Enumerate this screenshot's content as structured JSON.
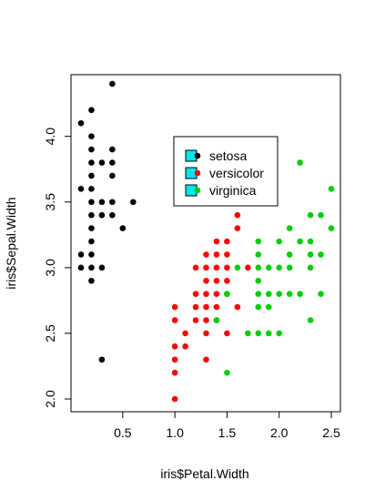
{
  "chart_data": {
    "type": "scatter",
    "title": "",
    "xlabel": "iris$Petal.Width",
    "ylabel": "iris$Sepal.Width",
    "xlim": [
      0.1,
      2.5
    ],
    "ylim": [
      2.0,
      4.4
    ],
    "xticks": [
      "0.5",
      "1.0",
      "1.5",
      "2.0",
      "2.5"
    ],
    "yticks": [
      "2.0",
      "2.5",
      "3.0",
      "3.5",
      "4.0"
    ],
    "grid": false,
    "legend_position": "top-center-right",
    "series": [
      {
        "name": "setosa",
        "color": "#000000",
        "points": [
          [
            0.1,
            4.1
          ],
          [
            0.1,
            3.6
          ],
          [
            0.1,
            3.1
          ],
          [
            0.1,
            3.0
          ],
          [
            0.2,
            4.2
          ],
          [
            0.2,
            4.0
          ],
          [
            0.2,
            3.9
          ],
          [
            0.2,
            3.8
          ],
          [
            0.2,
            3.7
          ],
          [
            0.2,
            3.6
          ],
          [
            0.2,
            3.5
          ],
          [
            0.2,
            3.4
          ],
          [
            0.2,
            3.3
          ],
          [
            0.2,
            3.2
          ],
          [
            0.2,
            3.1
          ],
          [
            0.2,
            3.0
          ],
          [
            0.2,
            2.9
          ],
          [
            0.3,
            3.8
          ],
          [
            0.3,
            3.5
          ],
          [
            0.3,
            3.4
          ],
          [
            0.3,
            3.0
          ],
          [
            0.3,
            2.3
          ],
          [
            0.4,
            4.4
          ],
          [
            0.4,
            3.9
          ],
          [
            0.4,
            3.8
          ],
          [
            0.4,
            3.7
          ],
          [
            0.4,
            3.5
          ],
          [
            0.4,
            3.4
          ],
          [
            0.5,
            3.3
          ],
          [
            0.6,
            3.5
          ]
        ]
      },
      {
        "name": "versicolor",
        "color": "#ff0000",
        "points": [
          [
            1.0,
            2.7
          ],
          [
            1.0,
            2.6
          ],
          [
            1.0,
            2.4
          ],
          [
            1.0,
            2.3
          ],
          [
            1.0,
            2.2
          ],
          [
            1.0,
            2.0
          ],
          [
            1.1,
            2.5
          ],
          [
            1.1,
            2.4
          ],
          [
            1.2,
            3.0
          ],
          [
            1.2,
            2.8
          ],
          [
            1.2,
            2.7
          ],
          [
            1.2,
            2.6
          ],
          [
            1.3,
            3.1
          ],
          [
            1.3,
            3.0
          ],
          [
            1.3,
            2.9
          ],
          [
            1.3,
            2.8
          ],
          [
            1.3,
            2.7
          ],
          [
            1.3,
            2.6
          ],
          [
            1.3,
            2.5
          ],
          [
            1.3,
            2.3
          ],
          [
            1.4,
            3.2
          ],
          [
            1.4,
            3.1
          ],
          [
            1.4,
            3.0
          ],
          [
            1.4,
            2.9
          ],
          [
            1.4,
            2.8
          ],
          [
            1.4,
            2.7
          ],
          [
            1.4,
            2.6
          ],
          [
            1.5,
            3.2
          ],
          [
            1.5,
            3.1
          ],
          [
            1.5,
            3.0
          ],
          [
            1.5,
            2.9
          ],
          [
            1.5,
            2.8
          ],
          [
            1.5,
            2.5
          ],
          [
            1.6,
            3.4
          ],
          [
            1.6,
            3.3
          ],
          [
            1.6,
            2.7
          ],
          [
            1.7,
            3.0
          ]
        ]
      },
      {
        "name": "virginica",
        "color": "#00cd00",
        "points": [
          [
            1.4,
            2.6
          ],
          [
            1.5,
            2.8
          ],
          [
            1.5,
            2.2
          ],
          [
            1.6,
            3.0
          ],
          [
            1.7,
            2.5
          ],
          [
            1.8,
            3.2
          ],
          [
            1.8,
            3.1
          ],
          [
            1.8,
            3.0
          ],
          [
            1.8,
            2.9
          ],
          [
            1.8,
            2.8
          ],
          [
            1.8,
            2.7
          ],
          [
            1.8,
            2.5
          ],
          [
            1.9,
            3.0
          ],
          [
            1.9,
            2.8
          ],
          [
            1.9,
            2.7
          ],
          [
            1.9,
            2.5
          ],
          [
            2.0,
            3.2
          ],
          [
            2.0,
            3.0
          ],
          [
            2.0,
            2.8
          ],
          [
            2.0,
            2.5
          ],
          [
            2.1,
            3.3
          ],
          [
            2.1,
            3.1
          ],
          [
            2.1,
            3.0
          ],
          [
            2.1,
            2.8
          ],
          [
            2.2,
            3.8
          ],
          [
            2.2,
            3.2
          ],
          [
            2.2,
            2.8
          ],
          [
            2.3,
            3.4
          ],
          [
            2.3,
            3.2
          ],
          [
            2.3,
            3.1
          ],
          [
            2.3,
            3.0
          ],
          [
            2.3,
            2.6
          ],
          [
            2.4,
            3.4
          ],
          [
            2.4,
            3.1
          ],
          [
            2.4,
            2.8
          ],
          [
            2.5,
            3.6
          ],
          [
            2.5,
            3.3
          ]
        ]
      }
    ]
  },
  "legend": {
    "items": [
      {
        "label": "setosa",
        "box_color": "#00e5ee",
        "dot_color": "#000000"
      },
      {
        "label": "versicolor",
        "box_color": "#00e5ee",
        "dot_color": "#ff0000"
      },
      {
        "label": "virginica",
        "box_color": "#00e5ee",
        "dot_color": "#00cd00"
      }
    ]
  }
}
